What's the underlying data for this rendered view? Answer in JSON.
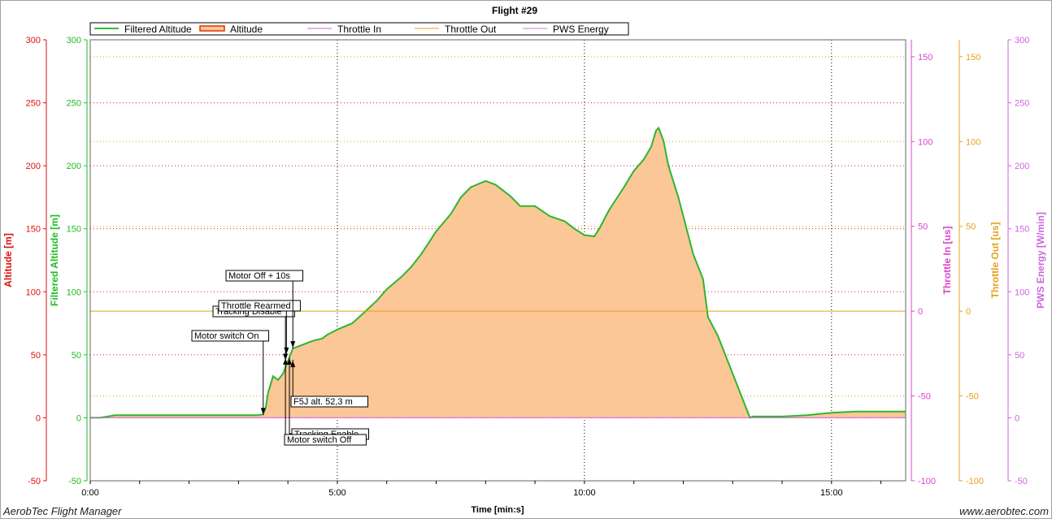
{
  "chart_data": {
    "type": "area",
    "title": "Flight #29",
    "xlabel": "Time [min:s]",
    "x_unit": "minutes",
    "xlim": [
      0,
      16.5
    ],
    "x_ticks": [
      {
        "value": 0,
        "label": "0:00"
      },
      {
        "value": 5,
        "label": "5:00"
      },
      {
        "value": 10,
        "label": "10:00"
      },
      {
        "value": 15,
        "label": "15:00"
      }
    ],
    "grid": true,
    "legend_position": "top-left",
    "legend": [
      {
        "name": "Filtered Altitude",
        "color": "#33bb33"
      },
      {
        "name": "Altitude",
        "color": "#dd3300"
      },
      {
        "name": "Throttle In",
        "color": "#dd66cc"
      },
      {
        "name": "Throttle Out",
        "color": "#e6a11a"
      },
      {
        "name": "PWS Energy",
        "color": "#cc77dd"
      }
    ],
    "axes": [
      {
        "label": "Altitude [m]",
        "color": "#dd1111",
        "side": "left",
        "range": [
          -50,
          300
        ],
        "ticks": [
          "-50",
          "0",
          "50",
          "100",
          "150",
          "200",
          "250",
          "300"
        ]
      },
      {
        "label": "Filtered Altitude [m]",
        "color": "#22bb22",
        "side": "left",
        "range": [
          -50,
          300
        ],
        "ticks": [
          "-50",
          "0",
          "50",
          "100",
          "150",
          "200",
          "250",
          "300"
        ]
      },
      {
        "label": "Throttle In [us]",
        "color": "#dd44cc",
        "side": "right",
        "range": [
          -100,
          160
        ],
        "ticks": [
          "-100",
          "-50",
          "0",
          "50",
          "100",
          "150"
        ]
      },
      {
        "label": "Throttle Out [us]",
        "color": "#e6a11a",
        "side": "right",
        "range": [
          -100,
          160
        ],
        "ticks": [
          "-100",
          "-50",
          "0",
          "50",
          "100",
          "150"
        ]
      },
      {
        "label": "PWS Energy [W/min]",
        "color": "#cc66dd",
        "side": "right",
        "range": [
          -50,
          300
        ],
        "ticks": [
          "-50",
          "0",
          "50",
          "100",
          "150",
          "200",
          "250",
          "300"
        ]
      }
    ],
    "series": [
      {
        "name": "Filtered Altitude",
        "axis": 0,
        "x": [
          0,
          0.2,
          0.35,
          0.5,
          1,
          2,
          3,
          3.4,
          3.5,
          3.55,
          3.6,
          3.7,
          3.8,
          3.9,
          4.0,
          4.1,
          4.3,
          4.5,
          4.7,
          4.8,
          5.0,
          5.3,
          5.5,
          5.8,
          6.0,
          6.3,
          6.5,
          6.7,
          7.0,
          7.3,
          7.5,
          7.7,
          8.0,
          8.2,
          8.5,
          8.7,
          9.0,
          9.3,
          9.6,
          9.8,
          10.0,
          10.2,
          10.3,
          10.5,
          10.8,
          11.0,
          11.2,
          11.35,
          11.45,
          11.5,
          11.6,
          11.7,
          11.9,
          12.0,
          12.2,
          12.4,
          12.5,
          12.7,
          12.9,
          13.1,
          13.3,
          13.35,
          13.4,
          13.5,
          13.8,
          14.0,
          14.5,
          15.0,
          15.5,
          16.0,
          16.5
        ],
        "y": [
          0,
          0,
          1,
          2,
          2,
          2,
          2,
          2,
          3,
          8,
          20,
          33,
          30,
          35,
          45,
          55,
          58,
          61,
          63,
          66,
          70,
          75,
          82,
          93,
          102,
          112,
          120,
          130,
          148,
          162,
          175,
          183,
          188,
          185,
          176,
          168,
          168,
          160,
          156,
          150,
          145,
          144,
          150,
          165,
          183,
          196,
          205,
          215,
          228,
          230,
          220,
          200,
          175,
          160,
          130,
          110,
          80,
          65,
          45,
          25,
          5,
          0,
          1,
          1,
          1,
          1,
          2,
          4,
          5,
          5,
          5
        ]
      }
    ],
    "reference_lines": [
      {
        "series": "Throttle Out",
        "axis": 3,
        "value": 0
      },
      {
        "series": "PWS Energy",
        "axis": 4,
        "value": 0
      }
    ],
    "events": [
      {
        "label": "Motor switch On",
        "x": 3.5,
        "y": 2
      },
      {
        "label": "Tracking Disable",
        "x": 3.95,
        "y": 45
      },
      {
        "label": "Throttle Rearmed",
        "x": 3.97,
        "y": 50
      },
      {
        "label": "Motor Off + 10s",
        "x": 4.1,
        "y": 55
      },
      {
        "label": "F5J alt. 52,3 m",
        "x": 4.1,
        "y": 46
      },
      {
        "label": "Tracking Enable",
        "x": 4.03,
        "y": 48
      },
      {
        "label": "Motor switch Off",
        "x": 3.95,
        "y": 48
      }
    ]
  },
  "footer": {
    "app_name": "AerobTec Flight Manager",
    "website": "www.aerobtec.com"
  }
}
